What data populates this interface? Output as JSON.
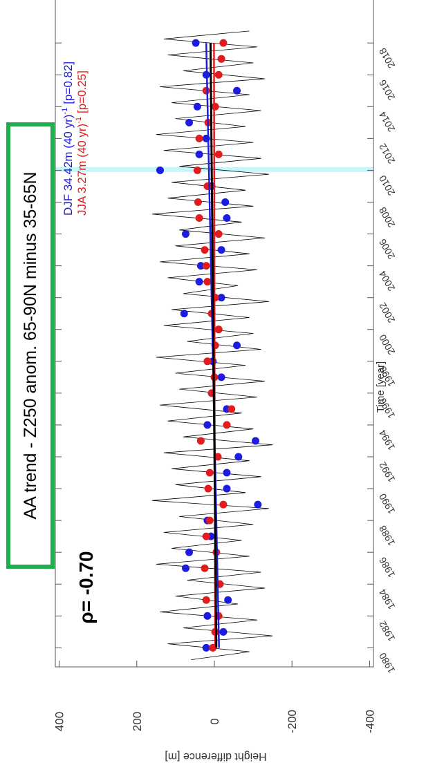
{
  "chart_data": {
    "type": "line",
    "annotations": {
      "box_text": "AA trend - Z250 anom. 65-90N minus 35-65N",
      "rho": "ρ= -0.70"
    },
    "xlabel": "Time [year]",
    "ylabel": "Height difference [m]",
    "xlim": [
      1978.8,
      2020.7
    ],
    "xticks": [
      1980,
      1982,
      1984,
      1986,
      1988,
      1990,
      1992,
      1994,
      1996,
      1998,
      2000,
      2002,
      2004,
      2006,
      2008,
      2010,
      2012,
      2014,
      2016,
      2018
    ],
    "ylim": [
      -410,
      410
    ],
    "yticks": [
      -400,
      -200,
      0,
      200,
      400
    ],
    "highlight_span": {
      "x": [
        2009.9,
        2010.2
      ],
      "color": "#c4f6fb"
    },
    "series": [
      {
        "style": "line",
        "color": "#000000",
        "x": [
          1979.25,
          1979.75,
          1980.25,
          1980.75,
          1981.25,
          1981.75,
          1982.25,
          1982.75,
          1983.25,
          1983.75,
          1984.25,
          1984.75,
          1985.25,
          1985.75,
          1986.25,
          1986.75,
          1987.25,
          1987.75,
          1988.25,
          1988.75,
          1989.25,
          1989.75,
          1990.25,
          1990.75,
          1991.25,
          1991.75,
          1992.25,
          1992.75,
          1993.25,
          1993.75,
          1994.25,
          1994.75,
          1995.25,
          1995.75,
          1996.25,
          1996.75,
          1997.25,
          1997.75,
          1998.25,
          1998.75,
          1999.25,
          1999.75,
          2000.25,
          2000.75,
          2001.25,
          2001.75,
          2002.25,
          2002.75,
          2003.25,
          2003.75,
          2004.25,
          2004.75,
          2005.25,
          2005.75,
          2006.25,
          2006.75,
          2007.25,
          2007.75,
          2008.25,
          2008.75,
          2009.25,
          2009.75,
          2010.25,
          2010.75,
          2011.25,
          2011.75,
          2012.25,
          2012.75,
          2013.25,
          2013.75,
          2014.25,
          2014.75,
          2015.25,
          2015.75,
          2016.25,
          2016.75,
          2017.25,
          2017.75,
          2018.25,
          2018.75
        ],
        "values": [
          60,
          -90,
          120,
          -150,
          80,
          -110,
          140,
          -60,
          100,
          -130,
          70,
          -120,
          150,
          -90,
          110,
          -70,
          130,
          -100,
          90,
          -140,
          160,
          -80,
          100,
          -120,
          110,
          -90,
          130,
          -150,
          80,
          -100,
          120,
          -70,
          140,
          -110,
          90,
          -130,
          100,
          -80,
          150,
          -120,
          70,
          -100,
          130,
          -90,
          110,
          -140,
          80,
          -60,
          120,
          -110,
          140,
          -90,
          100,
          -130,
          90,
          -70,
          160,
          -100,
          120,
          -80,
          110,
          -140,
          90,
          -120,
          130,
          -100,
          150,
          -80,
          100,
          -120,
          110,
          -90,
          140,
          -130,
          80,
          -100,
          120,
          -110,
          130,
          -90
        ]
      },
      {
        "style": "points",
        "name": "DJF 34.42m (40 yr)",
        "name_sup": "-1",
        "name_tail": "[p=0.82]",
        "color": "#1c1ce0",
        "x": [
          1980,
          1981,
          1982,
          1983,
          1984,
          1985,
          1986,
          1987,
          1988,
          1989,
          1990,
          1991,
          1992,
          1993,
          1994,
          1995,
          1996,
          1997,
          1998,
          1999,
          2000,
          2001,
          2002,
          2003,
          2004,
          2005,
          2006,
          2007,
          2008,
          2009,
          2010,
          2011,
          2012,
          2013,
          2014,
          2015,
          2016,
          2017,
          2018
        ],
        "values": [
          21,
          -23,
          18,
          -35,
          -14,
          74,
          65,
          9,
          18,
          -112,
          -32,
          -32,
          -62,
          -106,
          18,
          -32,
          7,
          -18,
          4,
          -58,
          -11,
          78,
          -18,
          39,
          35,
          -18,
          74,
          -32,
          -28,
          7,
          140,
          39,
          21,
          65,
          44,
          -58,
          21,
          -18,
          48
        ]
      },
      {
        "style": "points",
        "name": "JJA 3.27m (40 yr)",
        "name_sup": "-1",
        "name_tail": "[p=0.25]",
        "color": "#e21c1c",
        "x": [
          1980,
          1981,
          1982,
          1983,
          1984,
          1985,
          1986,
          1987,
          1988,
          1989,
          1990,
          1991,
          1992,
          1993,
          1994,
          1995,
          1996,
          1997,
          1998,
          1999,
          2000,
          2001,
          2002,
          2003,
          2004,
          2005,
          2006,
          2007,
          2008,
          2009,
          2010,
          2011,
          2012,
          2013,
          2014,
          2015,
          2016,
          2017,
          2018
        ],
        "values": [
          4,
          -2,
          -11,
          21,
          -14,
          25,
          -5,
          21,
          12,
          -23,
          16,
          12,
          -9,
          35,
          -32,
          -44,
          7,
          0,
          18,
          -2,
          -11,
          7,
          -2,
          18,
          21,
          25,
          -11,
          39,
          42,
          18,
          44,
          -11,
          39,
          16,
          -2,
          21,
          -11,
          -18,
          -23
        ]
      },
      {
        "style": "trend",
        "color": "#1c1ce0",
        "x": [
          1980,
          2018
        ],
        "values": [
          -12,
          21
        ]
      },
      {
        "style": "trend",
        "color": "#e21c1c",
        "x": [
          1980,
          2018
        ],
        "values": [
          -2,
          1
        ]
      },
      {
        "style": "trend",
        "color": "#000000",
        "x": [
          1980,
          2018
        ],
        "values": [
          -5,
          10
        ]
      }
    ]
  }
}
